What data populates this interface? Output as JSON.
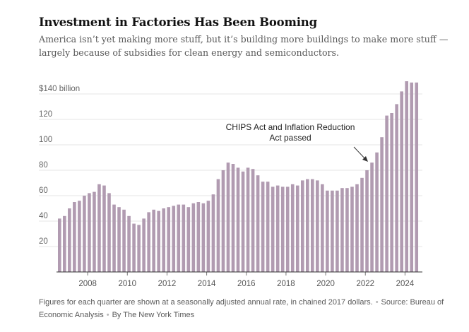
{
  "header": {
    "title": "Investment in Factories Has Been Booming",
    "subtitle": "America isn’t yet making more stuff, but it’s building more buildings to make more stuff — largely because of subsidies for clean energy and semiconductors."
  },
  "chart_data": {
    "type": "bar",
    "ylim": [
      0,
      150
    ],
    "y_ticks": [
      20,
      40,
      60,
      80,
      100,
      120,
      140
    ],
    "y_tick_labels": [
      "20",
      "40",
      "60",
      "80",
      "100",
      "120",
      "$140 billion"
    ],
    "x_ticks": [
      2008,
      2010,
      2012,
      2014,
      2016,
      2018,
      2020,
      2022,
      2024
    ],
    "x_tick_labels": [
      "2008",
      "2010",
      "2012",
      "2014",
      "2016",
      "2018",
      "2020",
      "2022",
      "2024"
    ],
    "grid": true,
    "bar_color": "#b19bb1",
    "first_quarter": "2007 Q1",
    "quarterly_values": [
      42,
      44,
      50,
      55,
      56,
      60,
      62,
      63,
      69,
      68,
      62,
      53,
      51,
      49,
      44,
      38,
      37,
      42,
      47,
      49,
      48,
      50,
      51,
      52,
      53,
      53,
      51,
      54,
      55,
      54,
      56,
      61,
      73,
      80,
      86,
      85,
      82,
      79,
      82,
      81,
      76,
      71,
      71,
      67,
      68,
      67,
      67,
      69,
      68,
      72,
      73,
      73,
      72,
      69,
      64,
      64,
      64,
      66,
      66,
      67,
      69,
      74,
      80,
      86,
      94,
      106,
      123,
      125,
      132,
      142,
      150,
      149,
      149
    ],
    "annotation": {
      "text": [
        "CHIPS Act and Inflation Reduction",
        "Act passed"
      ],
      "points_to": "2022 Q3"
    }
  },
  "footer": {
    "note": "Figures for each quarter are shown at a seasonally adjusted annual rate, in chained 2017 dollars.",
    "source_label": "Source:",
    "source": "Bureau of Economic Analysis",
    "credit": "By The New York Times"
  }
}
